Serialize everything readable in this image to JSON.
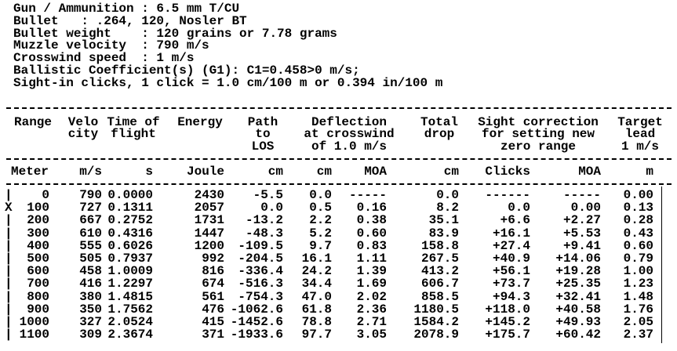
{
  "header": {
    "lines": [
      "Gun / Ammunition : 6.5 mm T/CU",
      "Bullet   : .264, 120, Nosler BT",
      "Bullet weight    : 120 grains or 7.78 grams",
      "Muzzle velocity  : 790 m/s",
      "Crosswind speed  : 1 m/s",
      "Ballistic Coefficient(s) (G1): C1=0.458>0 m/s;",
      "Sight-in clicks, 1 click = 1.0 cm/100 m or 0.394 in/100 m"
    ]
  },
  "table": {
    "columns": [
      {
        "title": [
          "Range"
        ],
        "unit": "Meter"
      },
      {
        "title": [
          "Velo",
          "city"
        ],
        "unit": "m/s"
      },
      {
        "title": [
          "Time of",
          "flight"
        ],
        "unit": "s"
      },
      {
        "title": [
          "Energy"
        ],
        "unit": "Joule"
      },
      {
        "title": [
          "Path",
          "to",
          "LOS"
        ],
        "unit": "cm"
      },
      {
        "title": [
          "Deflection",
          "at crosswind",
          "of 1.0 m/s"
        ],
        "unit": "cm"
      },
      {
        "title": [],
        "unit": "MOA"
      },
      {
        "title": [
          "Total",
          "drop"
        ],
        "unit": "cm"
      },
      {
        "title": [
          "Sight correction",
          "for setting new",
          "zero range"
        ],
        "unit": "Clicks"
      },
      {
        "title": [],
        "unit": "MOA"
      },
      {
        "title": [
          "Target",
          "lead",
          "1 m/s"
        ],
        "unit": "m"
      }
    ],
    "rows": [
      {
        "marker": "|",
        "cells": [
          "0",
          "790",
          "0.0000",
          "2430",
          "-5.5",
          "0.0",
          "-----",
          "0.0",
          "------",
          "-----",
          "0.00"
        ]
      },
      {
        "marker": "X",
        "cells": [
          "100",
          "727",
          "0.1311",
          "2057",
          "0.0",
          "0.5",
          "0.16",
          "8.2",
          "0.0",
          "0.00",
          "0.13"
        ]
      },
      {
        "marker": "|",
        "cells": [
          "200",
          "667",
          "0.2752",
          "1731",
          "-13.2",
          "2.2",
          "0.38",
          "35.1",
          "+6.6",
          "+2.27",
          "0.28"
        ]
      },
      {
        "marker": "|",
        "cells": [
          "300",
          "610",
          "0.4316",
          "1447",
          "-48.3",
          "5.2",
          "0.60",
          "83.9",
          "+16.1",
          "+5.53",
          "0.43"
        ]
      },
      {
        "marker": "|",
        "cells": [
          "400",
          "555",
          "0.6026",
          "1200",
          "-109.5",
          "9.7",
          "0.83",
          "158.8",
          "+27.4",
          "+9.41",
          "0.60"
        ]
      },
      {
        "marker": "|",
        "cells": [
          "500",
          "505",
          "0.7937",
          "992",
          "-204.5",
          "16.1",
          "1.11",
          "267.5",
          "+40.9",
          "+14.06",
          "0.79"
        ]
      },
      {
        "marker": "|",
        "cells": [
          "600",
          "458",
          "1.0009",
          "816",
          "-336.4",
          "24.2",
          "1.39",
          "413.2",
          "+56.1",
          "+19.28",
          "1.00"
        ]
      },
      {
        "marker": "|",
        "cells": [
          "700",
          "416",
          "1.2297",
          "674",
          "-516.3",
          "34.4",
          "1.69",
          "606.7",
          "+73.7",
          "+25.35",
          "1.23"
        ]
      },
      {
        "marker": "|",
        "cells": [
          "800",
          "380",
          "1.4815",
          "561",
          "-754.3",
          "47.0",
          "2.02",
          "858.5",
          "+94.3",
          "+32.41",
          "1.48"
        ]
      },
      {
        "marker": "|",
        "cells": [
          "900",
          "350",
          "1.7562",
          "476",
          "-1062.6",
          "61.8",
          "2.36",
          "1180.5",
          "+118.0",
          "+40.58",
          "1.76"
        ]
      },
      {
        "marker": "|",
        "cells": [
          "1000",
          "327",
          "2.0524",
          "415",
          "-1452.6",
          "78.8",
          "2.71",
          "1584.2",
          "+145.2",
          "+49.93",
          "2.05"
        ]
      },
      {
        "marker": "|",
        "cells": [
          "1100",
          "309",
          "2.3674",
          "371",
          "-1933.6",
          "97.7",
          "3.05",
          "2078.9",
          "+175.7",
          "+60.42",
          "2.37"
        ]
      }
    ]
  }
}
